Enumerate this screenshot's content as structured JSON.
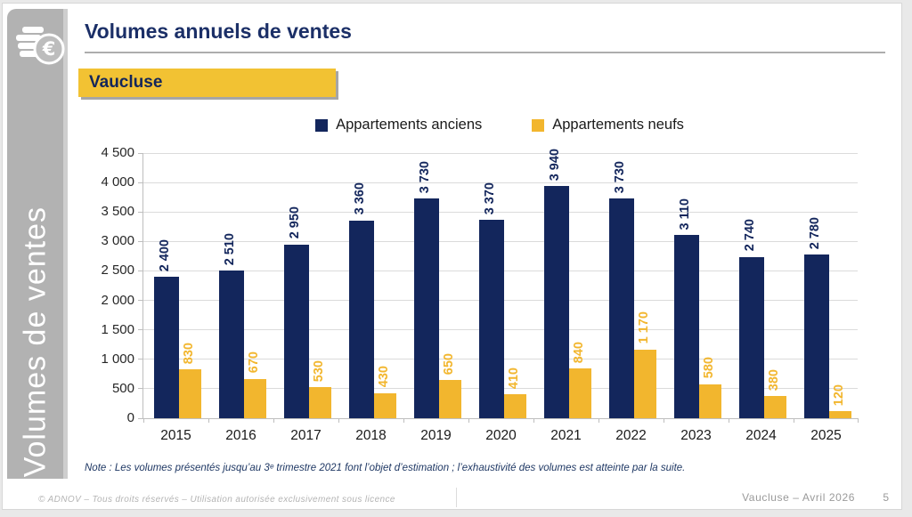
{
  "sidebar": {
    "vertical_label": "Volumes de ventes",
    "icon": "coins-euro-icon"
  },
  "header": {
    "title": "Volumes annuels de ventes",
    "region_badge": "Vaucluse"
  },
  "chart_data": {
    "type": "bar",
    "title": "Volumes annuels de ventes",
    "categories": [
      "2015",
      "2016",
      "2017",
      "2018",
      "2019",
      "2020",
      "2021",
      "2022",
      "2023",
      "2024",
      "2025"
    ],
    "series": [
      {
        "name": "Appartements anciens",
        "color": "#13265c",
        "values": [
          2400,
          2510,
          2950,
          3360,
          3730,
          3370,
          3940,
          3730,
          3110,
          2740,
          2780
        ],
        "labels": [
          "2 400",
          "2 510",
          "2 950",
          "3 360",
          "3 730",
          "3 370",
          "3 940",
          "3 730",
          "3 110",
          "2 740",
          "2 780"
        ]
      },
      {
        "name": "Appartements neufs",
        "color": "#f2b62e",
        "values": [
          830,
          670,
          530,
          430,
          650,
          410,
          840,
          1170,
          580,
          380,
          120
        ],
        "labels": [
          "830",
          "670",
          "530",
          "430",
          "650",
          "410",
          "840",
          "1 170",
          "580",
          "380",
          "120"
        ]
      }
    ],
    "ylim": [
      0,
      4500
    ],
    "yticks": [
      {
        "v": 0,
        "label": "0"
      },
      {
        "v": 500,
        "label": "500"
      },
      {
        "v": 1000,
        "label": "1 000"
      },
      {
        "v": 1500,
        "label": "1 500"
      },
      {
        "v": 2000,
        "label": "2 000"
      },
      {
        "v": 2500,
        "label": "2 500"
      },
      {
        "v": 3000,
        "label": "3 000"
      },
      {
        "v": 3500,
        "label": "3 500"
      },
      {
        "v": 4000,
        "label": "4 000"
      },
      {
        "v": 4500,
        "label": "4 500"
      }
    ],
    "grid": true,
    "legend_position": "top"
  },
  "note": "Note : Les volumes présentés jusqu’au 3ᵉ trimestre 2021 font l’objet d’estimation ; l’exhaustivité des volumes est atteinte par la suite.",
  "footer": {
    "left": "© ADNOV – Tous droits réservés – Utilisation autorisée exclusivement sous licence",
    "right": "Vaucluse – Avril 2026",
    "page_number": "5"
  }
}
